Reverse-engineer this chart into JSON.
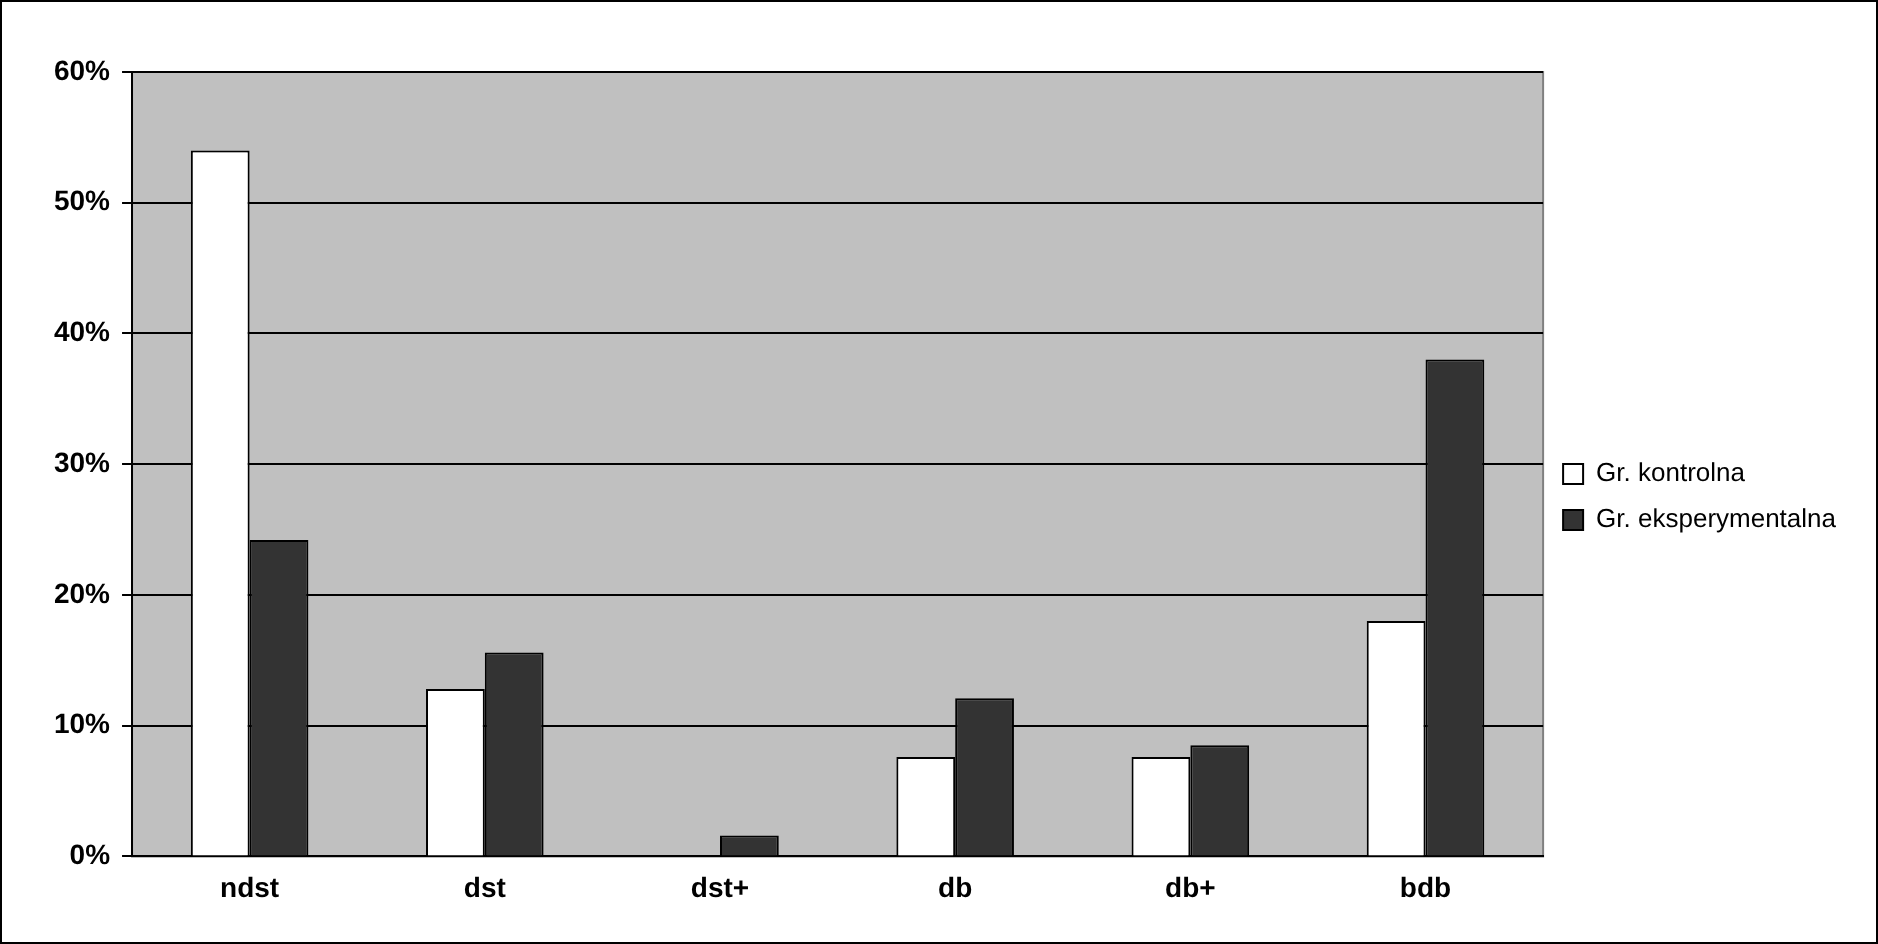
{
  "chart_data": {
    "type": "bar",
    "categories": [
      "ndst",
      "dst",
      "dst+",
      "db",
      "db+",
      "bdb"
    ],
    "series": [
      {
        "name": "Gr. kontrolna",
        "color": "#ffffff",
        "values": [
          54,
          12.8,
          0,
          7.6,
          7.6,
          18
        ]
      },
      {
        "name": "Gr. eksperymentalna",
        "color": "#333333",
        "values": [
          24.2,
          15.6,
          1.6,
          12.1,
          8.5,
          38
        ]
      }
    ],
    "ylim": [
      0,
      60
    ],
    "yticks": [
      {
        "value": 0,
        "label": "0%"
      },
      {
        "value": 10,
        "label": "10%"
      },
      {
        "value": 20,
        "label": "20%"
      },
      {
        "value": 30,
        "label": "30%"
      },
      {
        "value": 40,
        "label": "40%"
      },
      {
        "value": 50,
        "label": "50%"
      },
      {
        "value": 60,
        "label": "60%"
      }
    ],
    "grid": "y",
    "legend": "right"
  }
}
